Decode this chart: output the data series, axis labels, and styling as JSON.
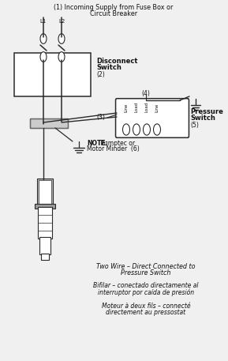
{
  "title_line1": "(1) Incoming Supply from Fuse Box or",
  "title_line2": "Circuit Breaker",
  "bg_color": "#f0f0f0",
  "line_color": "#2a2a2a",
  "text_color": "#111111",
  "disconnect_label": "Disconnect",
  "disconnect_label2": "Switch",
  "disconnect_num": "(2)",
  "pressure_label": "Pressure",
  "pressure_label2": "Switch",
  "pressure_num": "(5)",
  "control_box_num": "(3)",
  "top_label_num": "(4)",
  "note_bold": "NOTE:",
  "note_text": " Pumptec or",
  "note_text2": "Motor Minder  (6)",
  "bottom_text1_line1": "Two Wire – Direct Connected to",
  "bottom_text1_line2": "Pressure Switch",
  "bottom_text2_line1": "Bifilar – conectado directamente al",
  "bottom_text2_line2": "interruptor por caída de presión",
  "bottom_text3_line1": "Moteur à deux fils – connecté",
  "bottom_text3_line2": "directement au pressostat",
  "L1_label": "L1",
  "L2_label": "L2",
  "line_labels": [
    "Line",
    "Load",
    "Load",
    "Line"
  ],
  "figw": 2.89,
  "figh": 4.57,
  "dpi": 100
}
